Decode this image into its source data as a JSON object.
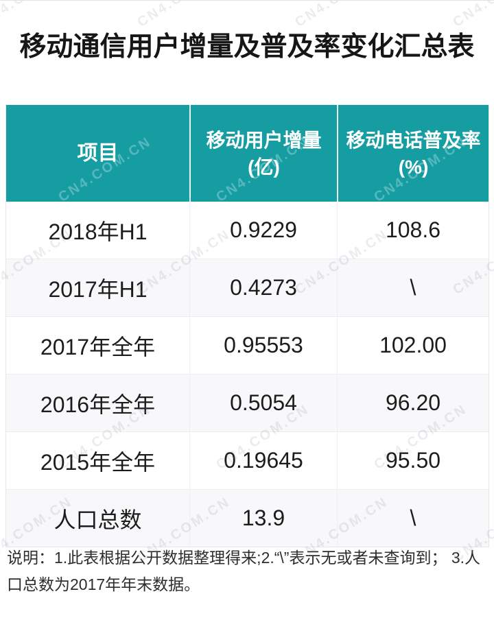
{
  "page": {
    "title": "移动通信用户增量及普及率变化汇总表",
    "watermark_text": "CN4.COM.CN",
    "colors": {
      "header_teal": "#159da2",
      "row_alt": "#f8f7fa",
      "header_text": "#ffffff",
      "body_text": "#1c1c1c"
    }
  },
  "table": {
    "columns": [
      {
        "label": "项目",
        "unit": ""
      },
      {
        "label": "移动用户增量",
        "unit": "(亿)"
      },
      {
        "label": "移动电话普及率",
        "unit": "(%)"
      }
    ],
    "rows": [
      {
        "item": "2018年H1",
        "increment": "0.9229",
        "penetration": "108.6"
      },
      {
        "item": "2017年H1",
        "increment": "0.4273",
        "penetration": "\\"
      },
      {
        "item": "2017年全年",
        "increment": "0.95553",
        "penetration": "102.00"
      },
      {
        "item": "2016年全年",
        "increment": "0.5054",
        "penetration": "96.20"
      },
      {
        "item": "2015年全年",
        "increment": "0.19645",
        "penetration": "95.50"
      },
      {
        "item": "人口总数",
        "increment": "13.9",
        "penetration": "\\"
      }
    ]
  },
  "footer": {
    "note": "说明：1.此表根据公开数据整理得来;2.“\\”表示无或者未查询到； 3.人口总数为2017年年末数据。"
  },
  "chart_data": {
    "type": "table",
    "title": "移动通信用户增量及普及率变化汇总表",
    "columns": [
      "项目",
      "移动用户增量(亿)",
      "移动电话普及率(%)"
    ],
    "rows": [
      [
        "2018年H1",
        "0.9229",
        "108.6"
      ],
      [
        "2017年H1",
        "0.4273",
        "\\"
      ],
      [
        "2017年全年",
        "0.95553",
        "102.00"
      ],
      [
        "2016年全年",
        "0.5054",
        "96.20"
      ],
      [
        "2015年全年",
        "0.19645",
        "95.50"
      ],
      [
        "人口总数",
        "13.9",
        "\\"
      ]
    ],
    "note": "说明：1.此表根据公开数据整理得来;2.“\\”表示无或者未查询到； 3.人口总数为2017年年末数据。"
  }
}
